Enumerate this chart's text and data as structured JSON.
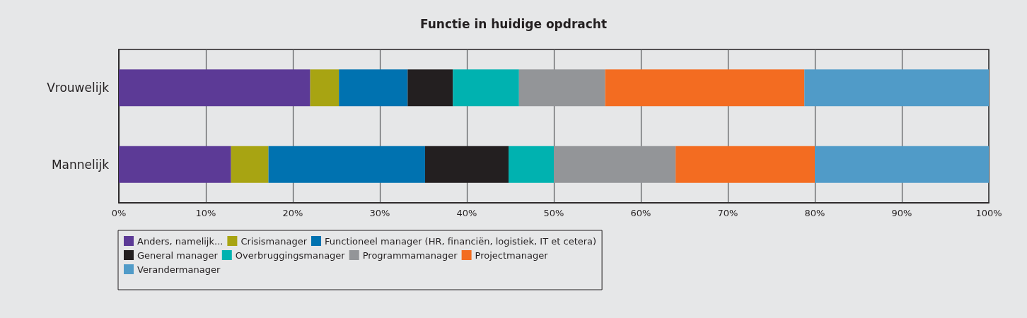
{
  "chart_data": {
    "type": "bar",
    "title": "Functie in huidige opdracht",
    "orientation": "horizontal",
    "stacked": true,
    "categories": [
      "Vrouwelijk",
      "Mannelijk"
    ],
    "series": [
      {
        "name": "Anders, namelijk...",
        "color": "#5c3a96",
        "values": [
          22.0,
          12.9
        ]
      },
      {
        "name": "Crisismanager",
        "color": "#a8a412",
        "values": [
          3.3,
          4.3
        ]
      },
      {
        "name": "Functioneel manager (HR, financiën, logistiek, IT et cetera)",
        "color": "#0072b0",
        "values": [
          7.9,
          18.0
        ]
      },
      {
        "name": "General manager",
        "color": "#231f20",
        "values": [
          5.2,
          9.6
        ]
      },
      {
        "name": "Overbruggingsmanager",
        "color": "#00b2b0",
        "values": [
          7.6,
          5.2
        ]
      },
      {
        "name": "Programmamanager",
        "color": "#939598",
        "values": [
          9.9,
          14.0
        ]
      },
      {
        "name": "Projectmanager",
        "color": "#f36c21",
        "values": [
          22.9,
          16.0
        ]
      },
      {
        "name": "Verandermanager",
        "color": "#509bc8",
        "values": [
          21.2,
          20.0
        ]
      }
    ],
    "xlim": [
      0,
      100
    ],
    "xticks": [
      {
        "value": 0,
        "label": "0%"
      },
      {
        "value": 10,
        "label": "10%"
      },
      {
        "value": 20,
        "label": "20%"
      },
      {
        "value": 30,
        "label": "30%"
      },
      {
        "value": 40,
        "label": "40%"
      },
      {
        "value": 50,
        "label": "50%"
      },
      {
        "value": 60,
        "label": "60%"
      },
      {
        "value": 70,
        "label": "70%"
      },
      {
        "value": 80,
        "label": "80%"
      },
      {
        "value": 90,
        "label": "90%"
      },
      {
        "value": 100,
        "label": "100%"
      }
    ],
    "grid": "x",
    "legend": "bottom left"
  }
}
